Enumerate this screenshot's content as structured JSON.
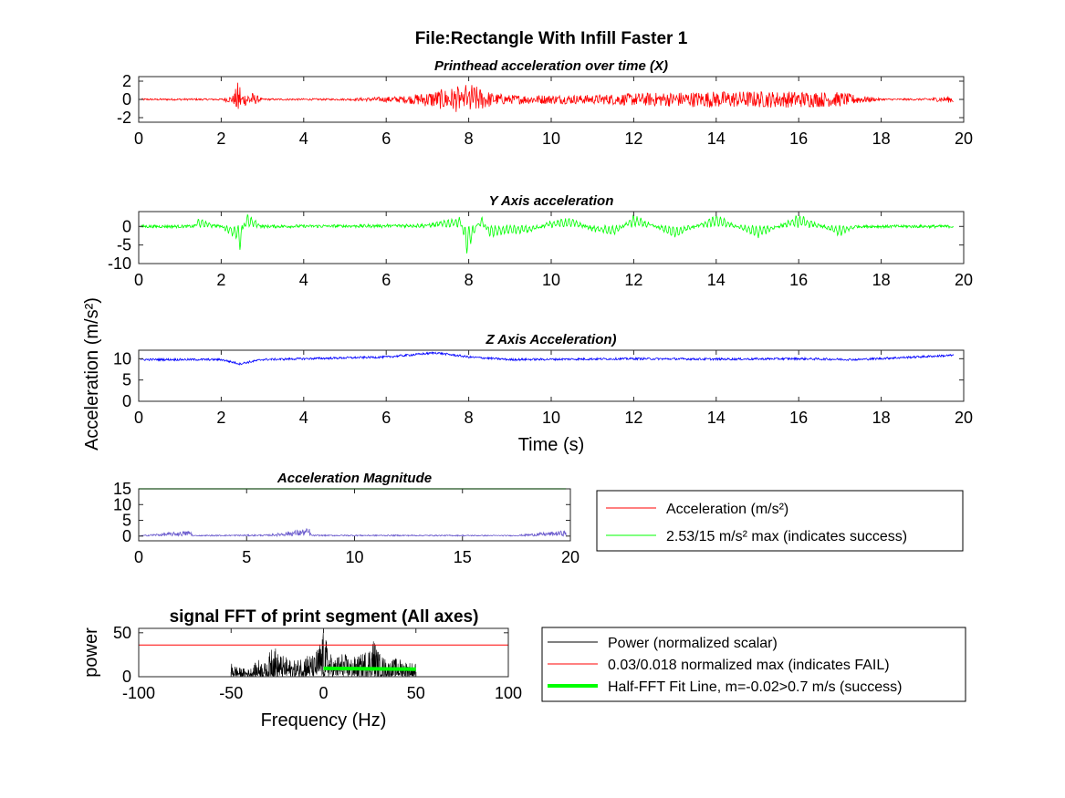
{
  "figure_title": "File:Rectangle With Infill Faster 1",
  "shared_ylabel": "Acceleration (m/s²)",
  "chart_data": [
    {
      "type": "line",
      "title": "Printhead acceleration over time (X)",
      "xlabel": "",
      "ylabel": "",
      "xlim": [
        0,
        20
      ],
      "ylim": [
        -2.5,
        2.5
      ],
      "xticks": [
        0,
        2,
        4,
        6,
        8,
        10,
        12,
        14,
        16,
        18,
        20
      ],
      "yticks": [
        2,
        0,
        -2
      ],
      "color": "#ff0000",
      "grid": false,
      "series": [
        {
          "x": [
            0.05,
            1.0,
            2.0,
            2.3,
            2.42,
            2.45,
            2.5,
            2.7,
            3.0,
            5.0,
            6.0,
            6.5,
            7.8,
            7.95,
            8.0,
            8.3,
            8.6,
            9.0,
            10.0,
            11.0,
            12.0,
            13.0,
            14.0,
            15.0,
            16.0,
            17.0,
            17.4,
            18.0,
            19.0,
            19.75
          ],
          "y": [
            0.1,
            0.1,
            0.1,
            0.5,
            2.2,
            -2.3,
            0.6,
            0.9,
            0.1,
            0.1,
            0.3,
            0.4,
            1.5,
            -2.6,
            1.9,
            1.2,
            0.7,
            0.5,
            0.5,
            0.5,
            0.7,
            0.8,
            0.9,
            0.9,
            0.9,
            0.8,
            0.5,
            0.1,
            0.1,
            0.4
          ]
        }
      ]
    },
    {
      "type": "line",
      "title": "Y Axis acceleration",
      "xlabel": "",
      "ylabel": "",
      "xlim": [
        0,
        20
      ],
      "ylim": [
        -10,
        4
      ],
      "xticks": [
        0,
        2,
        4,
        6,
        8,
        10,
        12,
        14,
        16,
        18,
        20
      ],
      "yticks": [
        0,
        -5,
        -10
      ],
      "color": "#00ff00",
      "grid": false,
      "series": [
        {
          "x": [
            0.05,
            1.35,
            1.4,
            2.0,
            2.4,
            2.45,
            2.6,
            3.0,
            6.0,
            7.0,
            7.8,
            7.95,
            8.3,
            8.5,
            9.0,
            9.5,
            10.0,
            10.5,
            11.0,
            11.5,
            12.0,
            13.0,
            14.0,
            15.0,
            16.0,
            17.0,
            17.4,
            18.0,
            19.75
          ],
          "y": [
            0.0,
            0.0,
            2.0,
            0.0,
            -3.5,
            -6.8,
            3.5,
            0.0,
            0.3,
            0.5,
            2.5,
            -7.5,
            3.0,
            -2.5,
            -1.8,
            -1.5,
            1.5,
            2.0,
            -1.0,
            -2.5,
            3.0,
            -3.0,
            3.0,
            -3.0,
            3.0,
            -2.5,
            0.0,
            0.0,
            0.0
          ]
        }
      ]
    },
    {
      "type": "line",
      "title": "Z Axis Acceleration)",
      "xlabel": "Time (s)",
      "ylabel": "",
      "xlim": [
        0,
        20
      ],
      "ylim": [
        0,
        12
      ],
      "xticks": [
        0,
        2,
        4,
        6,
        8,
        10,
        12,
        14,
        16,
        18,
        20
      ],
      "yticks": [
        10,
        5,
        0
      ],
      "color": "#0000ff",
      "grid": false,
      "series": [
        {
          "x": [
            0.05,
            2.0,
            2.45,
            3.0,
            6.0,
            7.2,
            8.0,
            9.0,
            12.0,
            14.0,
            16.0,
            17.4,
            19.75
          ],
          "y": [
            9.8,
            9.8,
            8.8,
            9.8,
            10.4,
            11.4,
            10.4,
            9.8,
            10.0,
            9.9,
            10.0,
            9.8,
            10.8
          ]
        }
      ]
    },
    {
      "type": "line",
      "title": "Acceleration Magnitude",
      "xlabel": "",
      "ylabel": "",
      "xlim": [
        0,
        20
      ],
      "ylim": [
        -1.5,
        15
      ],
      "xticks": [
        0,
        5,
        10,
        15,
        20
      ],
      "yticks": [
        15,
        10,
        5,
        0
      ],
      "grid": false,
      "legend": "right",
      "series": [
        {
          "name": "Acceleration (m/s²)",
          "color": "#ff0000",
          "trace_color": "#6a5acd",
          "x": [
            0.05,
            2.4,
            2.5,
            6.0,
            7.9,
            8.0,
            12.0,
            17.4,
            19.8
          ],
          "y": [
            0.2,
            1.8,
            0.3,
            0.5,
            2.53,
            0.4,
            0.4,
            0.3,
            1.8
          ]
        },
        {
          "name": "2.53/15 m/s² max (indicates success)",
          "color": "#00ff00",
          "x": [
            0,
            19.8
          ],
          "y": [
            15,
            15
          ]
        }
      ]
    },
    {
      "type": "line",
      "title": "signal FFT of print segment (All axes)",
      "xlabel": "Frequency (Hz)",
      "ylabel": "power",
      "xlim": [
        -100,
        100
      ],
      "ylim": [
        0,
        55
      ],
      "xticks": [
        -100,
        -50,
        0,
        50,
        100
      ],
      "yticks": [
        50,
        0
      ],
      "grid": false,
      "legend": "right",
      "series": [
        {
          "name": "Power (normalized scalar)",
          "color": "#000000",
          "x": [
            -50,
            -45,
            -40,
            -35,
            -30,
            -28,
            -25,
            -20,
            -15,
            -10,
            -5,
            0,
            5,
            10,
            15,
            20,
            25,
            27,
            30,
            35,
            40,
            45,
            50
          ],
          "y": [
            16,
            10,
            9,
            20,
            14,
            48,
            28,
            22,
            18,
            28,
            24,
            52,
            20,
            28,
            22,
            25,
            36,
            47,
            28,
            18,
            22,
            18,
            16
          ]
        },
        {
          "name": "0.03/0.018 normalized max (indicates FAIL)",
          "color": "#ff0000",
          "x": [
            -100,
            100
          ],
          "y": [
            36,
            36
          ]
        },
        {
          "name": "Half-FFT Fit Line, m=-0.02>0.7 m/s (success)",
          "color": "#00ff00",
          "x": [
            0,
            50
          ],
          "y": [
            9.5,
            8.5
          ]
        }
      ]
    }
  ]
}
